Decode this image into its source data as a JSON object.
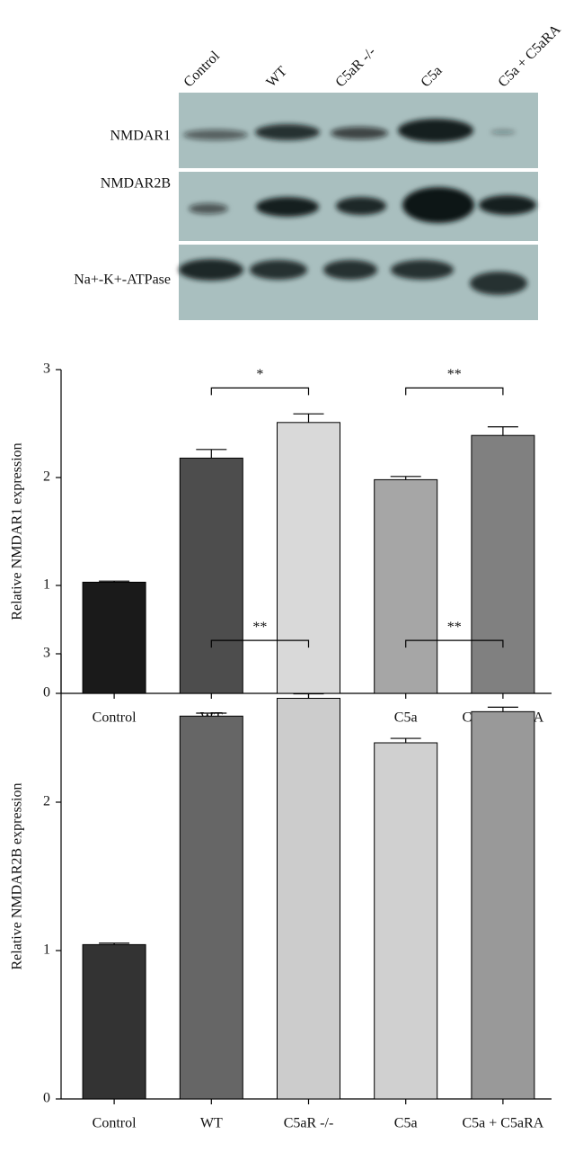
{
  "blot": {
    "lanes": [
      "Control",
      "WT",
      "C5aR -/-",
      "C5a",
      "C5a + C5aRA"
    ],
    "rows": [
      "NMDAR1",
      "NMDAR2B",
      "Na+-K+-ATPase"
    ]
  },
  "chart_data": [
    {
      "type": "bar",
      "y_label": "Relative NMDAR1 expression",
      "categories": [
        "Control",
        "WT",
        "C5aR -/-",
        "C5a",
        "C5a + C5aRA"
      ],
      "values": [
        1.03,
        2.18,
        2.51,
        1.98,
        2.39
      ],
      "errors": [
        0.01,
        0.08,
        0.08,
        0.03,
        0.08
      ],
      "colors": [
        "#1a1a1a",
        "#4d4d4d",
        "#d9d9d9",
        "#a6a6a6",
        "#808080"
      ],
      "ylim": [
        0,
        3
      ],
      "yticks": [
        0,
        1,
        2,
        3
      ],
      "annotations": [
        {
          "text": "*",
          "from": 1,
          "to": 2,
          "y": 2.83
        },
        {
          "text": "**",
          "from": 3,
          "to": 4,
          "y": 2.83
        }
      ]
    },
    {
      "type": "bar",
      "y_label": "Relative NMDAR2B expression",
      "categories": [
        "Control",
        "WT",
        "C5aR -/-",
        "C5a",
        "C5a + C5aRA"
      ],
      "values": [
        1.04,
        2.58,
        2.7,
        2.4,
        2.61
      ],
      "errors": [
        0.01,
        0.02,
        0.03,
        0.03,
        0.03
      ],
      "colors": [
        "#333333",
        "#666666",
        "#cccccc",
        "#d0d0d0",
        "#999999"
      ],
      "ylim": [
        0,
        3
      ],
      "yticks": [
        0,
        1,
        2,
        3
      ],
      "annotations": [
        {
          "text": "**",
          "from": 1,
          "to": 2,
          "y": 3.09
        },
        {
          "text": "**",
          "from": 3,
          "to": 4,
          "y": 3.09
        }
      ]
    }
  ]
}
